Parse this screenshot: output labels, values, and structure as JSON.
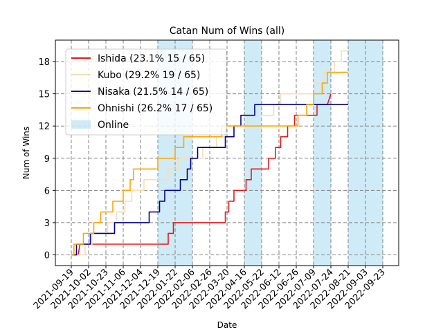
{
  "chart_data": {
    "type": "line",
    "title": "Catan Num of Wins (all)",
    "xlabel": "Date",
    "ylabel": "Num of Wins",
    "x_ticks": [
      "2021-09-19",
      "2021-10-02",
      "2021-10-23",
      "2021-11-06",
      "2021-12-04",
      "2021-12-19",
      "2022-01-22",
      "2022-02-06",
      "2022-02-26",
      "2022-03-20",
      "2022-04-16",
      "2022-05-22",
      "2022-06-12",
      "2022-06-26",
      "2022-07-09",
      "2022-07-24",
      "2022-08-21",
      "2022-09-03",
      "2022-09-23"
    ],
    "y_ticks": [
      0,
      3,
      6,
      9,
      12,
      15,
      18
    ],
    "ylim": [
      -1,
      20
    ],
    "grid": true,
    "legend_position": "upper-left",
    "online_periods": [
      [
        5,
        7
      ],
      [
        10,
        11
      ],
      [
        14,
        15
      ],
      [
        16,
        18
      ]
    ],
    "online_label": "Online",
    "online_color": "#87ceeb",
    "series": [
      {
        "name": "Ishida (23.1% 15 / 65)",
        "color": "#e31a1c",
        "points": [
          [
            0,
            0
          ],
          [
            0.4,
            0
          ],
          [
            0.5,
            1
          ],
          [
            5.6,
            1
          ],
          [
            5.6,
            2
          ],
          [
            5.9,
            2
          ],
          [
            5.9,
            3
          ],
          [
            8.9,
            3
          ],
          [
            8.9,
            4
          ],
          [
            9.1,
            4
          ],
          [
            9.1,
            5
          ],
          [
            9.4,
            5
          ],
          [
            9.4,
            6
          ],
          [
            10.1,
            6
          ],
          [
            10.1,
            7
          ],
          [
            10.4,
            7
          ],
          [
            10.4,
            8
          ],
          [
            11.4,
            8
          ],
          [
            11.4,
            9
          ],
          [
            11.8,
            9
          ],
          [
            11.8,
            10
          ],
          [
            12.1,
            10
          ],
          [
            12.1,
            11
          ],
          [
            12.5,
            11
          ],
          [
            12.5,
            12
          ],
          [
            12.9,
            12
          ],
          [
            12.9,
            13
          ],
          [
            14.2,
            13
          ],
          [
            14.2,
            14
          ],
          [
            14.8,
            14
          ],
          [
            15,
            15
          ]
        ]
      },
      {
        "name": "Kubo (29.2% 19 / 65)",
        "color": "#f5deb3",
        "points": [
          [
            0,
            0
          ],
          [
            0.8,
            0
          ],
          [
            0.8,
            1
          ],
          [
            1.2,
            1
          ],
          [
            1.2,
            2
          ],
          [
            2.1,
            2
          ],
          [
            2.1,
            3
          ],
          [
            2.6,
            3
          ],
          [
            2.6,
            4
          ],
          [
            3.1,
            4
          ],
          [
            3.1,
            5
          ],
          [
            3.5,
            5
          ],
          [
            3.5,
            6
          ],
          [
            4.2,
            6
          ],
          [
            4.2,
            7
          ],
          [
            5.6,
            7
          ],
          [
            5.6,
            8
          ],
          [
            6.2,
            8
          ],
          [
            6.2,
            9
          ],
          [
            7.6,
            9
          ],
          [
            7.6,
            10
          ],
          [
            8.4,
            10
          ],
          [
            8.4,
            11
          ],
          [
            8.9,
            11
          ],
          [
            8.9,
            12
          ],
          [
            10.2,
            12
          ],
          [
            10.2,
            13
          ],
          [
            11.7,
            13
          ],
          [
            11.7,
            14
          ],
          [
            12.1,
            14
          ],
          [
            12.1,
            15
          ],
          [
            14.1,
            15
          ],
          [
            14.1,
            16
          ],
          [
            14.6,
            16
          ],
          [
            14.6,
            17
          ],
          [
            15.2,
            17
          ],
          [
            15.2,
            18
          ],
          [
            15.6,
            18
          ],
          [
            15.6,
            19
          ],
          [
            16,
            19
          ]
        ]
      },
      {
        "name": "Nisaka (21.5% 14 / 65)",
        "color": "#00008b",
        "points": [
          [
            0,
            0
          ],
          [
            0.3,
            0
          ],
          [
            0.3,
            1
          ],
          [
            1.1,
            1
          ],
          [
            1.1,
            2
          ],
          [
            2.5,
            2
          ],
          [
            2.5,
            3
          ],
          [
            4.5,
            3
          ],
          [
            4.5,
            4
          ],
          [
            5.1,
            4
          ],
          [
            5.1,
            5
          ],
          [
            5.4,
            5
          ],
          [
            5.4,
            6
          ],
          [
            6.3,
            6
          ],
          [
            6.3,
            7
          ],
          [
            6.7,
            7
          ],
          [
            6.7,
            8
          ],
          [
            6.9,
            8
          ],
          [
            6.9,
            9
          ],
          [
            7.3,
            9
          ],
          [
            7.3,
            10
          ],
          [
            8.9,
            10
          ],
          [
            8.9,
            11
          ],
          [
            9.4,
            11
          ],
          [
            9.4,
            12
          ],
          [
            9.8,
            12
          ],
          [
            9.8,
            13
          ],
          [
            10.6,
            13
          ],
          [
            10.6,
            14
          ],
          [
            16,
            14
          ]
        ]
      },
      {
        "name": "Ohnishi (26.2% 17 / 65)",
        "color": "#ffa500",
        "points": [
          [
            0,
            0
          ],
          [
            0.15,
            0
          ],
          [
            0.15,
            1
          ],
          [
            0.7,
            1
          ],
          [
            0.7,
            2
          ],
          [
            1.3,
            2
          ],
          [
            1.3,
            3
          ],
          [
            1.7,
            3
          ],
          [
            1.7,
            4
          ],
          [
            2.4,
            4
          ],
          [
            2.4,
            5
          ],
          [
            3.0,
            5
          ],
          [
            3.0,
            6
          ],
          [
            3.4,
            6
          ],
          [
            3.4,
            7
          ],
          [
            3.6,
            7
          ],
          [
            3.6,
            8
          ],
          [
            5.0,
            8
          ],
          [
            5.0,
            9
          ],
          [
            6.0,
            9
          ],
          [
            6.0,
            10
          ],
          [
            6.5,
            10
          ],
          [
            6.5,
            11
          ],
          [
            8.7,
            11
          ],
          [
            8.7,
            12
          ],
          [
            13.1,
            12
          ],
          [
            13.1,
            13
          ],
          [
            13.6,
            13
          ],
          [
            13.6,
            14
          ],
          [
            14.0,
            14
          ],
          [
            14.0,
            15
          ],
          [
            14.5,
            15
          ],
          [
            14.5,
            16
          ],
          [
            14.8,
            16
          ],
          [
            14.8,
            17
          ],
          [
            16,
            17
          ]
        ]
      }
    ]
  }
}
